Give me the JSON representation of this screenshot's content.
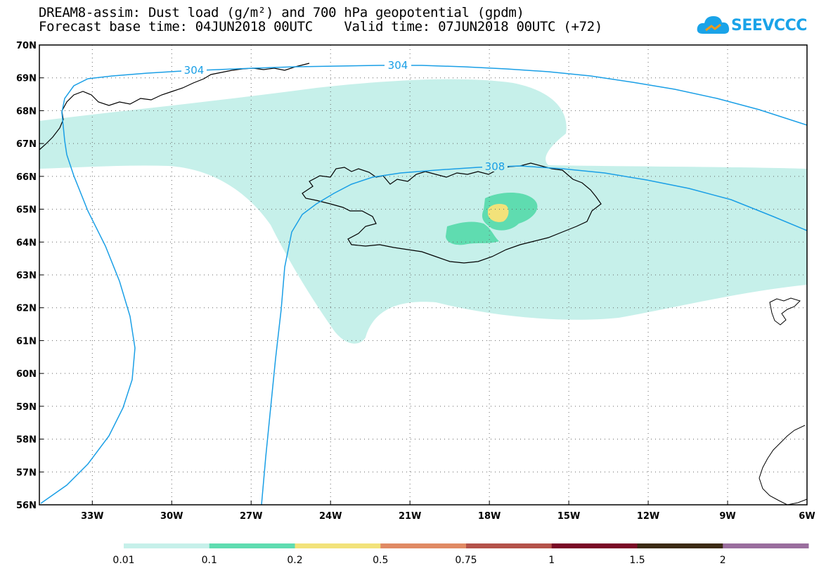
{
  "title": {
    "line1": "DREAM8-assim: Dust load (g/m²) and 700 hPa geopotential (gpdm)",
    "line2": "Forecast base time: 04JUN2018 00UTC    Valid time: 07JUN2018 00UTC (+72)"
  },
  "logo": {
    "text": "SEEVCCC",
    "icon": "cloud-icon",
    "color": "#1aa3e8"
  },
  "axes": {
    "lat_labels": [
      "70N",
      "69N",
      "68N",
      "67N",
      "66N",
      "65N",
      "64N",
      "63N",
      "62N",
      "61N",
      "60N",
      "59N",
      "58N",
      "57N",
      "56N"
    ],
    "lon_labels": [
      "33W",
      "30W",
      "27W",
      "24W",
      "21W",
      "18W",
      "15W",
      "12W",
      "9W",
      "6W"
    ],
    "lon_range": [
      -35,
      -6
    ],
    "lat_range": [
      56,
      70
    ],
    "grid": true
  },
  "contours": [
    {
      "label": "304"
    },
    {
      "label": "304"
    },
    {
      "label": "308"
    }
  ],
  "colorbar": {
    "labels": [
      "0.01",
      "0.1",
      "0.2",
      "0.5",
      "0.75",
      "1",
      "1.5",
      "2"
    ],
    "colors": [
      "#c6f0ea",
      "#5fdcb0",
      "#f2e27a",
      "#e08a64",
      "#b4524a",
      "#7a0a26",
      "#3c2a14",
      "#9a6e9e"
    ]
  },
  "colors": {
    "contour": "#1a9fe6",
    "coast": "#000000",
    "dust_low": "#c6f0ea",
    "dust_mid": "#5fdcb0",
    "dust_high": "#f2e27a"
  }
}
